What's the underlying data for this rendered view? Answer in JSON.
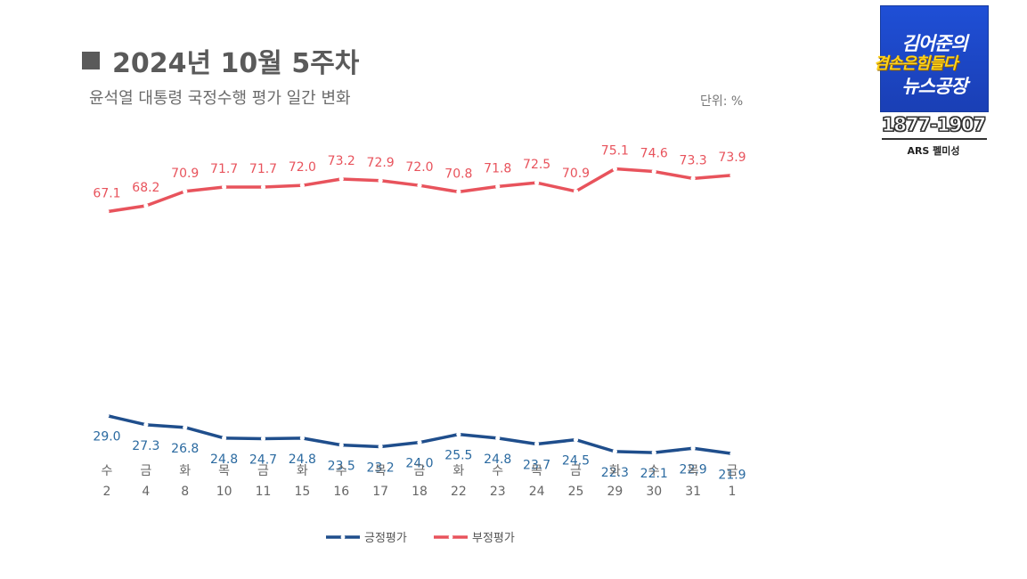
{
  "header": {
    "title": "2024년 10월 5주차",
    "subtitle": "윤석열 대통령 국정수행 평가 일간 변화",
    "unit": "단위: %"
  },
  "logo": {
    "line1": "김어준의",
    "line2": "겸손은힘들다",
    "line3": "뉴스공장",
    "phone": "1877-1907",
    "note": "ARS 펠미성"
  },
  "colors": {
    "positive": "#1f4e8c",
    "negative": "#e8535c",
    "positive_label": "#2b6aa0",
    "negative_label": "#e8535c"
  },
  "chart_data": {
    "type": "line",
    "categories": [
      {
        "day": "수",
        "date": "2"
      },
      {
        "day": "금",
        "date": "4"
      },
      {
        "day": "화",
        "date": "8"
      },
      {
        "day": "목",
        "date": "10"
      },
      {
        "day": "금",
        "date": "11"
      },
      {
        "day": "화",
        "date": "15"
      },
      {
        "day": "수",
        "date": "16"
      },
      {
        "day": "목",
        "date": "17"
      },
      {
        "day": "금",
        "date": "18"
      },
      {
        "day": "화",
        "date": "22"
      },
      {
        "day": "수",
        "date": "23"
      },
      {
        "day": "목",
        "date": "24"
      },
      {
        "day": "금",
        "date": "25"
      },
      {
        "day": "화",
        "date": "29"
      },
      {
        "day": "수",
        "date": "30"
      },
      {
        "day": "목",
        "date": "31"
      },
      {
        "day": "금",
        "date": "1"
      }
    ],
    "series": [
      {
        "name": "긍정평가",
        "values": [
          29.0,
          27.3,
          26.8,
          24.8,
          24.7,
          24.8,
          23.5,
          23.2,
          24.0,
          25.5,
          24.8,
          23.7,
          24.5,
          22.3,
          22.1,
          22.9,
          21.9
        ]
      },
      {
        "name": "부정평가",
        "values": [
          67.1,
          68.2,
          70.9,
          71.7,
          71.7,
          72.0,
          73.2,
          72.9,
          72.0,
          70.8,
          71.8,
          72.5,
          70.9,
          75.1,
          74.6,
          73.3,
          73.9
        ]
      }
    ],
    "legend_position": "bottom",
    "grid": false
  }
}
